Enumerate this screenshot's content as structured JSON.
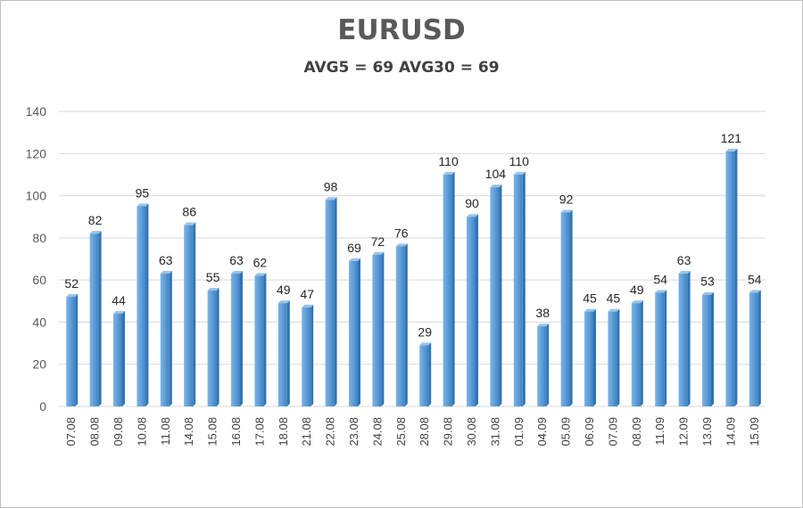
{
  "chart_data": {
    "type": "bar",
    "title": "EURUSD",
    "subtitle": "AVG5 = 69 AVG30 = 69",
    "categories": [
      "07.08",
      "08.08",
      "09.08",
      "10.08",
      "11.08",
      "14.08",
      "15.08",
      "16.08",
      "17.08",
      "18.08",
      "21.08",
      "22.08",
      "23.08",
      "24.08",
      "25.08",
      "28.08",
      "29.08",
      "30.08",
      "31.08",
      "01.09",
      "04.09",
      "05.09",
      "06.09",
      "07.09",
      "08.09",
      "11.09",
      "12.09",
      "13.09",
      "14.09",
      "15.09"
    ],
    "values": [
      52,
      82,
      44,
      95,
      63,
      86,
      55,
      63,
      62,
      49,
      47,
      98,
      69,
      72,
      76,
      29,
      110,
      90,
      104,
      110,
      38,
      92,
      45,
      45,
      49,
      54,
      63,
      53,
      121,
      54
    ],
    "ylim": [
      0,
      140
    ],
    "yticks": [
      0,
      20,
      40,
      60,
      80,
      100,
      120,
      140
    ],
    "grid": true,
    "legend": "none",
    "bar_color": "#5b9bd5",
    "bar_side_color": "#2e75b6"
  }
}
